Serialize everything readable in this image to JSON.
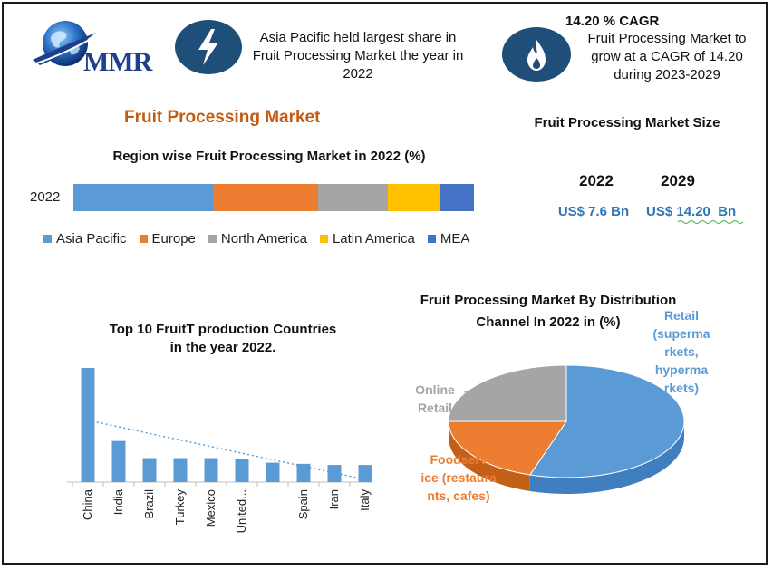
{
  "colors": {
    "accent_dark": "#1f4e79",
    "title_orange": "#c55a11",
    "value_blue": "#2e75b6",
    "bar_blue": "#5b9bd5"
  },
  "header": {
    "logo_text": "MMR",
    "info1_icon": "lightning-icon",
    "info1_text": "Asia Pacific held largest share in Fruit Processing Market the year in 2022",
    "info2_icon": "flame-icon",
    "info2_heading": "14.20 % CAGR",
    "info2_text": "Fruit Processing Market to grow at a CAGR of 14.20 during 2023-2029"
  },
  "main_title": "Fruit Processing Market",
  "market_size": {
    "title": "Fruit Processing Market Size",
    "year1": "2022",
    "year2": "2029",
    "value1": "US$ 7.6 Bn",
    "value2": "US$ 14.20  Bn"
  },
  "chart_data": [
    {
      "type": "bar",
      "orientation": "horizontal-stacked",
      "title": "Region wise Fruit Processing Market in 2022 (%)",
      "categories": [
        "2022"
      ],
      "series": [
        {
          "name": "Asia Pacific",
          "values": [
            35
          ],
          "color": "#5b9bd5"
        },
        {
          "name": "Europe",
          "values": [
            26
          ],
          "color": "#ed7d31"
        },
        {
          "name": "North America",
          "values": [
            17.5
          ],
          "color": "#a5a5a5"
        },
        {
          "name": "Latin America",
          "values": [
            13
          ],
          "color": "#ffc000"
        },
        {
          "name": "MEA",
          "values": [
            8.5
          ],
          "color": "#4472c4"
        }
      ],
      "legend": "bottom"
    },
    {
      "type": "bar",
      "title": "Top 10 FruitT production Countries in the year 2022.",
      "categories": [
        "China",
        "India",
        "Brazil",
        "Turkey",
        "Mexico",
        "United...",
        "",
        "Spain",
        "Iran",
        "Italy"
      ],
      "values": [
        100,
        36,
        21,
        21,
        21,
        20,
        17,
        16,
        15,
        15
      ],
      "trendline": "linear dotted",
      "grid": false
    },
    {
      "type": "pie",
      "title": "Fruit Processing Market By Distribution  Channel In 2022 in (%)",
      "labels": [
        "Retail (supermarkets, hypermarkets)",
        "Foodservice (restaurants, cafes)",
        "Online Retail"
      ],
      "values": [
        55,
        20,
        25
      ],
      "colors": [
        "#5b9bd5",
        "#ed7d31",
        "#a5a5a5"
      ],
      "label_colors": [
        "#5b9bd5",
        "#ed7d31",
        "#a5a5a5"
      ],
      "display_labels": [
        "Retail (superma rkets, hyperma rkets)",
        "Foodserv ice (restaura nts, cafes)",
        "Online Retail"
      ],
      "style": "3d"
    }
  ]
}
